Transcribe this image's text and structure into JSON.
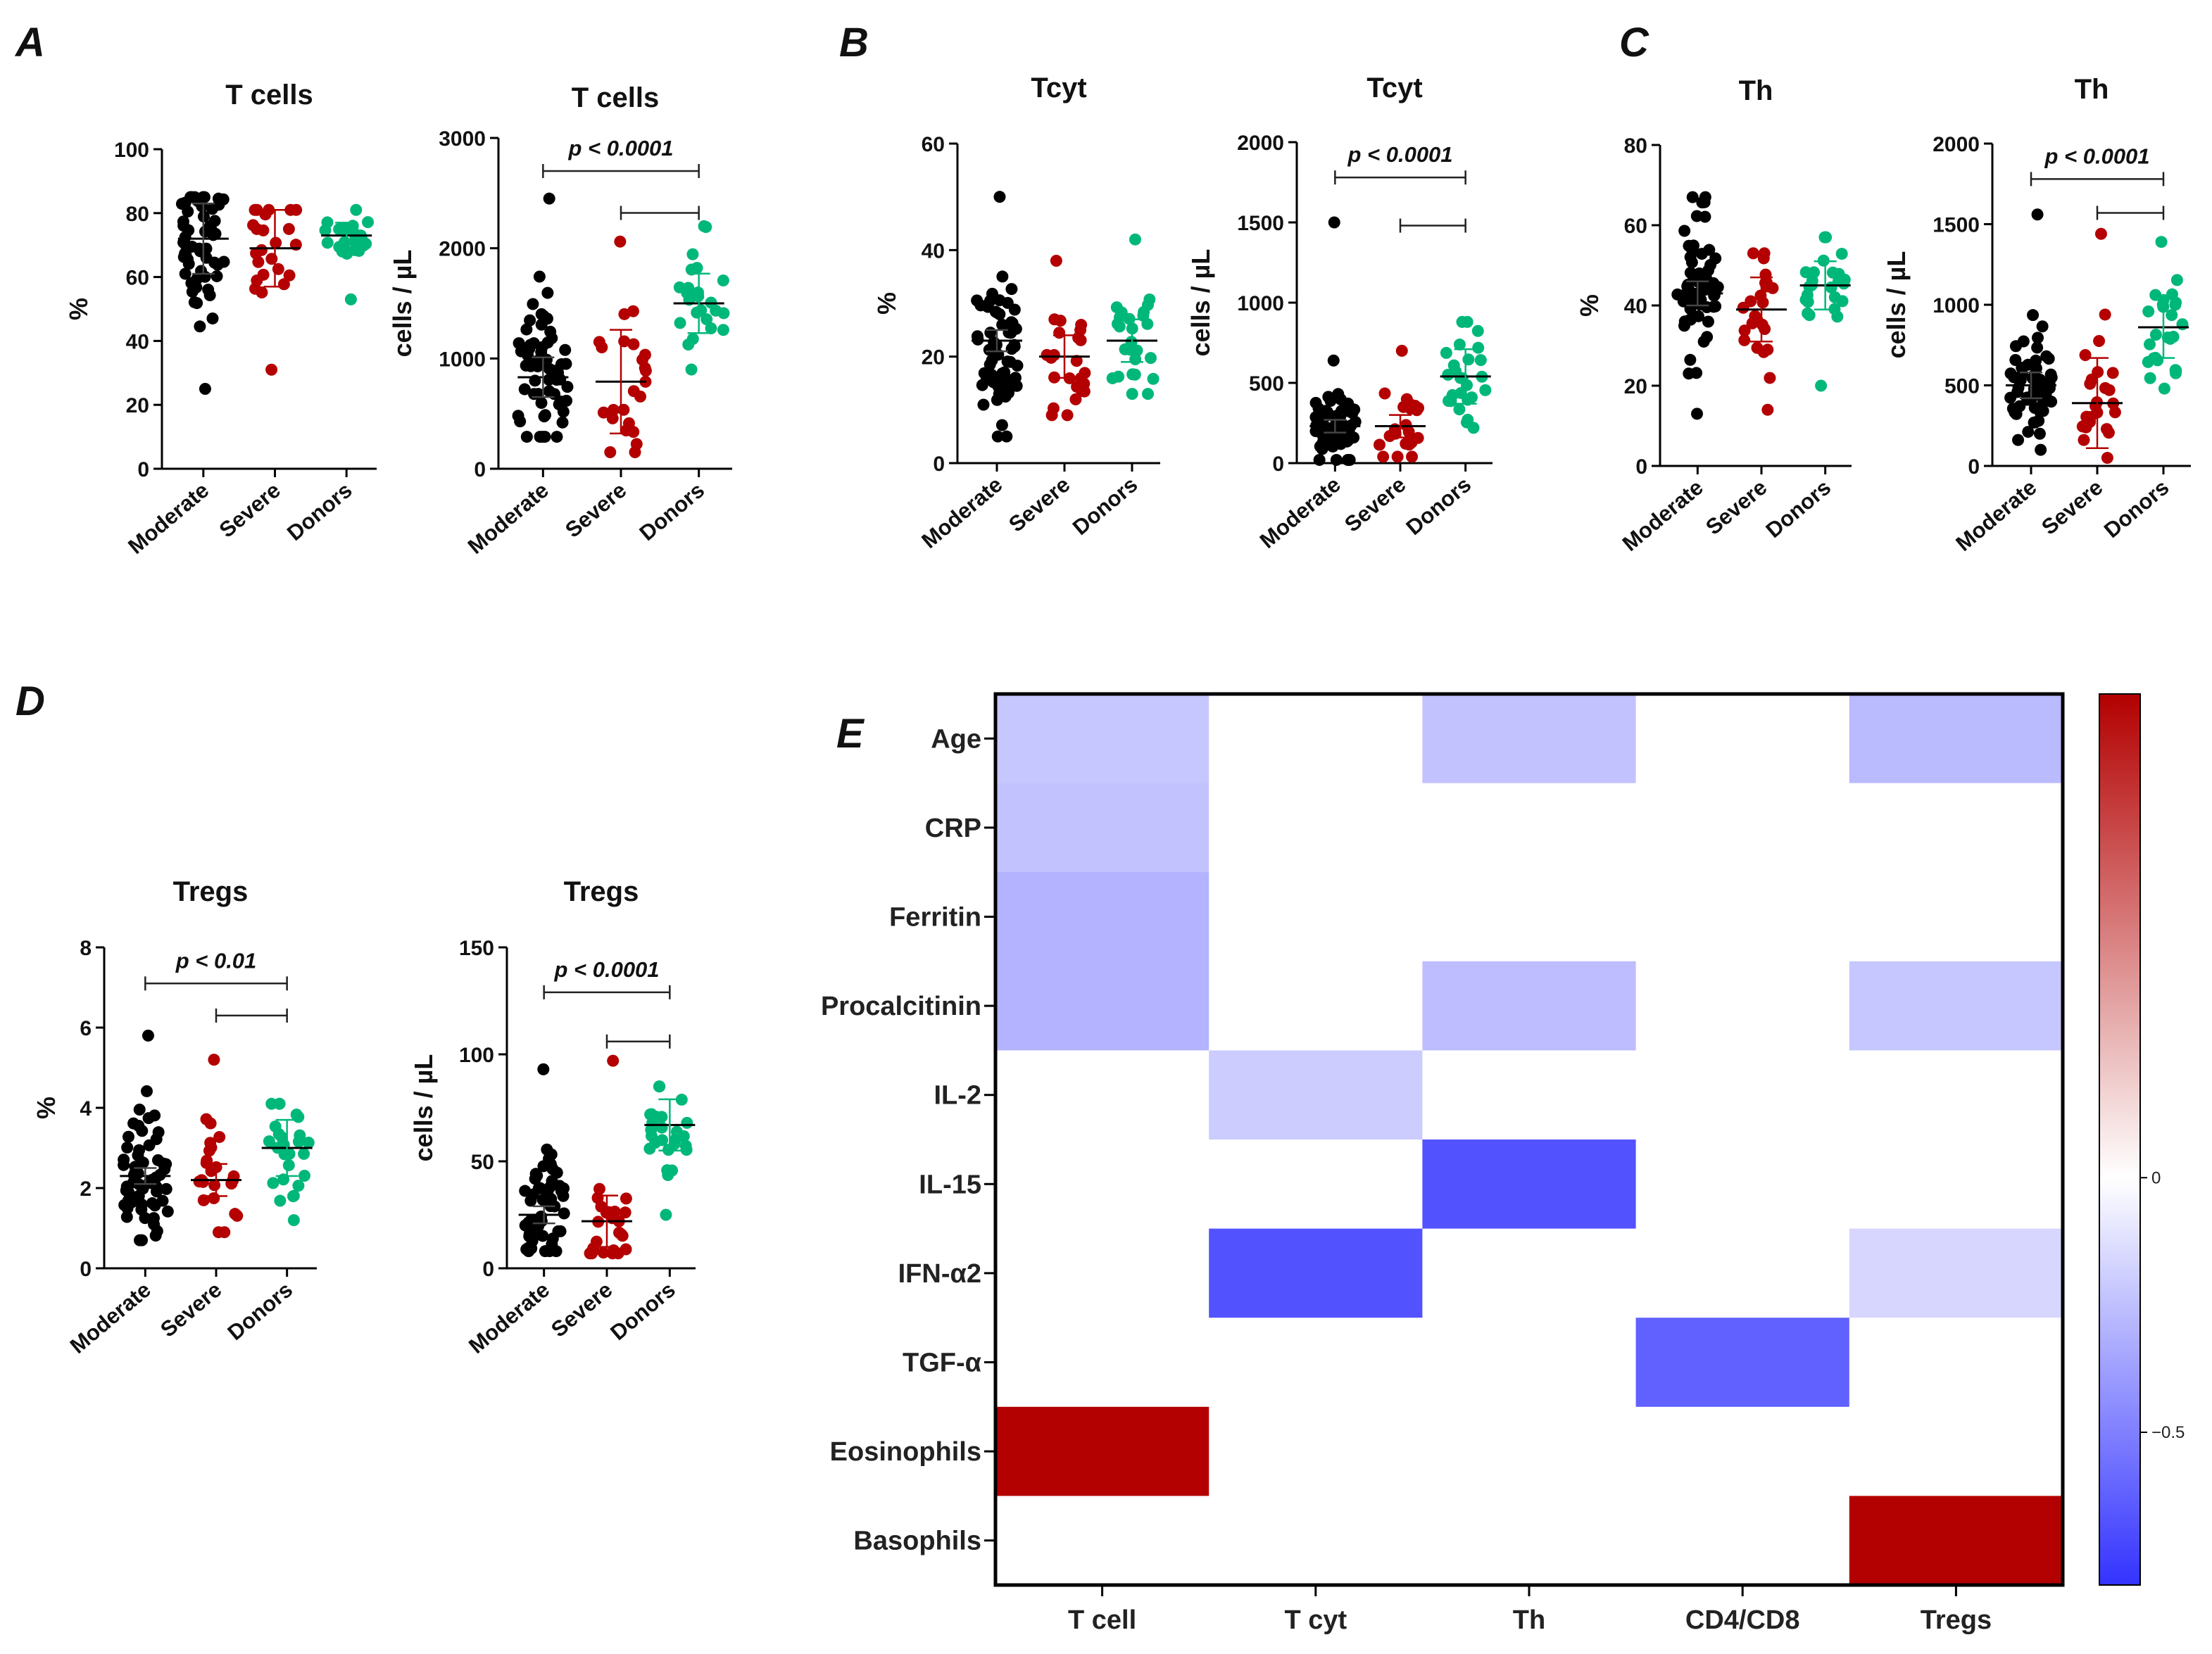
{
  "colors": {
    "Moderate": "#000000",
    "Severe": "#b40000",
    "Donors": "#00b77a",
    "axis": "#000000",
    "neg": "#3333ff",
    "pos": "#b30000"
  },
  "chart_data": [
    {
      "type": "scatter",
      "panel": "A",
      "title": "T cells",
      "ylabel": "%",
      "ylim": [
        0,
        100
      ],
      "yticks": [
        0,
        20,
        40,
        60,
        80,
        100
      ],
      "categories": [
        "Moderate",
        "Severe",
        "Donors"
      ],
      "groups": [
        {
          "name": "Moderate",
          "n": 60,
          "center": 72,
          "min": 25,
          "max": 85,
          "spread": 11,
          "mean": 72,
          "err": 11
        },
        {
          "name": "Severe",
          "n": 24,
          "center": 69,
          "min": 31,
          "max": 81,
          "spread": 11,
          "mean": 69,
          "err": 12
        },
        {
          "name": "Donors",
          "n": 26,
          "center": 73,
          "min": 53,
          "max": 81,
          "spread": 4,
          "mean": 73,
          "err": 4
        }
      ],
      "annotations": []
    },
    {
      "type": "scatter",
      "panel": "A2",
      "title": "T cells",
      "ylabel": "cells / µL",
      "ylim": [
        0,
        3000
      ],
      "yticks": [
        0,
        1000,
        2000,
        3000
      ],
      "categories": [
        "Moderate",
        "Severe",
        "Donors"
      ],
      "groups": [
        {
          "name": "Moderate",
          "n": 60,
          "center": 820,
          "min": 290,
          "max": 2450,
          "spread": 400,
          "mean": 830,
          "err": 180
        },
        {
          "name": "Severe",
          "n": 24,
          "center": 780,
          "min": 150,
          "max": 2060,
          "spread": 400,
          "mean": 790,
          "err": 470
        },
        {
          "name": "Donors",
          "n": 26,
          "center": 1490,
          "min": 900,
          "max": 2200,
          "spread": 270,
          "mean": 1500,
          "err": 270
        }
      ],
      "annotations": [
        {
          "text": "p < 0.0001",
          "from": 0,
          "to": 2,
          "y": 2700
        },
        {
          "text": "",
          "from": 1,
          "to": 2,
          "y": 2320
        }
      ]
    },
    {
      "type": "scatter",
      "panel": "B",
      "title": "Tcyt",
      "ylabel": "%",
      "ylim": [
        0,
        60
      ],
      "yticks": [
        0,
        20,
        40,
        60
      ],
      "categories": [
        "Moderate",
        "Severe",
        "Donors"
      ],
      "groups": [
        {
          "name": "Moderate",
          "n": 60,
          "center": 23,
          "min": 5,
          "max": 50,
          "spread": 8,
          "mean": 23,
          "err": 2
        },
        {
          "name": "Severe",
          "n": 24,
          "center": 20,
          "min": 9,
          "max": 38,
          "spread": 7,
          "mean": 20,
          "err": 4
        },
        {
          "name": "Donors",
          "n": 26,
          "center": 23,
          "min": 13,
          "max": 42,
          "spread": 7,
          "mean": 23,
          "err": 4
        }
      ],
      "annotations": []
    },
    {
      "type": "scatter",
      "panel": "B2",
      "title": "Tcyt",
      "ylabel": "cells / µL",
      "ylim": [
        0,
        2000
      ],
      "yticks": [
        0,
        500,
        1000,
        1500,
        2000
      ],
      "categories": [
        "Moderate",
        "Severe",
        "Donors"
      ],
      "groups": [
        {
          "name": "Moderate",
          "n": 60,
          "center": 230,
          "min": 20,
          "max": 1500,
          "spread": 140,
          "mean": 230,
          "err": 40
        },
        {
          "name": "Severe",
          "n": 24,
          "center": 230,
          "min": 40,
          "max": 700,
          "spread": 140,
          "mean": 230,
          "err": 70
        },
        {
          "name": "Donors",
          "n": 26,
          "center": 540,
          "min": 220,
          "max": 880,
          "spread": 160,
          "mean": 540,
          "err": 170
        }
      ],
      "annotations": [
        {
          "text": "p < 0.0001",
          "from": 0,
          "to": 2,
          "y": 1780
        },
        {
          "text": "",
          "from": 1,
          "to": 2,
          "y": 1480
        }
      ]
    },
    {
      "type": "scatter",
      "panel": "C",
      "title": "Th",
      "ylabel": "%",
      "ylim": [
        0,
        80
      ],
      "yticks": [
        0,
        20,
        40,
        60,
        80
      ],
      "categories": [
        "Moderate",
        "Severe",
        "Donors"
      ],
      "groups": [
        {
          "name": "Moderate",
          "n": 60,
          "center": 43,
          "min": 13,
          "max": 67,
          "spread": 9,
          "mean": 43,
          "err": 3
        },
        {
          "name": "Severe",
          "n": 24,
          "center": 39,
          "min": 14,
          "max": 53,
          "spread": 8,
          "mean": 39,
          "err": 8
        },
        {
          "name": "Donors",
          "n": 26,
          "center": 45,
          "min": 20,
          "max": 57,
          "spread": 6,
          "mean": 45,
          "err": 6
        }
      ],
      "annotations": []
    },
    {
      "type": "scatter",
      "panel": "C2",
      "title": "Th",
      "ylabel": "cells / µL",
      "ylim": [
        0,
        2000
      ],
      "yticks": [
        0,
        500,
        1000,
        1500,
        2000
      ],
      "categories": [
        "Moderate",
        "Severe",
        "Donors"
      ],
      "groups": [
        {
          "name": "Moderate",
          "n": 60,
          "center": 500,
          "min": 100,
          "max": 1560,
          "spread": 200,
          "mean": 500,
          "err": 80
        },
        {
          "name": "Severe",
          "n": 24,
          "center": 390,
          "min": 50,
          "max": 1440,
          "spread": 220,
          "mean": 390,
          "err": 280
        },
        {
          "name": "Donors",
          "n": 26,
          "center": 860,
          "min": 480,
          "max": 1390,
          "spread": 190,
          "mean": 860,
          "err": 190
        }
      ],
      "annotations": [
        {
          "text": "p < 0.0001",
          "from": 0,
          "to": 2,
          "y": 1780
        },
        {
          "text": "",
          "from": 1,
          "to": 2,
          "y": 1570
        }
      ]
    },
    {
      "type": "scatter",
      "panel": "D",
      "title": "Tregs",
      "ylabel": "%",
      "ylim": [
        0,
        8
      ],
      "yticks": [
        0,
        2,
        4,
        6,
        8
      ],
      "categories": [
        "Moderate",
        "Severe",
        "Donors"
      ],
      "groups": [
        {
          "name": "Moderate",
          "n": 60,
          "center": 2.3,
          "min": 0.7,
          "max": 5.8,
          "spread": 0.9,
          "mean": 2.3,
          "err": 0.2
        },
        {
          "name": "Severe",
          "n": 24,
          "center": 2.2,
          "min": 0.9,
          "max": 5.2,
          "spread": 0.9,
          "mean": 2.2,
          "err": 0.4
        },
        {
          "name": "Donors",
          "n": 26,
          "center": 3.0,
          "min": 1.2,
          "max": 4.1,
          "spread": 0.7,
          "mean": 3.0,
          "err": 0.7
        }
      ],
      "annotations": [
        {
          "text": "p < 0.01",
          "from": 0,
          "to": 2,
          "y": 7.1
        },
        {
          "text": "",
          "from": 1,
          "to": 2,
          "y": 6.3
        }
      ]
    },
    {
      "type": "scatter",
      "panel": "D2",
      "title": "Tregs",
      "ylabel": "cells / µL",
      "ylim": [
        0,
        150
      ],
      "yticks": [
        0,
        50,
        100,
        150
      ],
      "categories": [
        "Moderate",
        "Severe",
        "Donors"
      ],
      "groups": [
        {
          "name": "Moderate",
          "n": 60,
          "center": 25,
          "min": 8,
          "max": 93,
          "spread": 14,
          "mean": 25,
          "err": 4
        },
        {
          "name": "Severe",
          "n": 24,
          "center": 22,
          "min": 7,
          "max": 97,
          "spread": 12,
          "mean": 22,
          "err": 12
        },
        {
          "name": "Donors",
          "n": 26,
          "center": 67,
          "min": 25,
          "max": 85,
          "spread": 12,
          "mean": 67,
          "err": 12
        }
      ],
      "annotations": [
        {
          "text": "p < 0.0001",
          "from": 0,
          "to": 2,
          "y": 129
        },
        {
          "text": "",
          "from": 1,
          "to": 2,
          "y": 106
        }
      ]
    },
    {
      "type": "heatmap",
      "panel": "E",
      "rows": [
        "Age",
        "CRP",
        "Ferritin",
        "Procalcitinin",
        "IL-2",
        "IL-15",
        "IFN-α2",
        "TGF-α",
        "Eosinophils",
        "Basophils"
      ],
      "cols": [
        "T cell",
        "T cyt",
        "Th",
        "CD4/CD8",
        "Tregs"
      ],
      "values": [
        [
          -0.22,
          0,
          -0.24,
          0,
          -0.27
        ],
        [
          -0.24,
          0,
          0,
          0,
          0
        ],
        [
          -0.3,
          0,
          0,
          0,
          0
        ],
        [
          -0.3,
          0,
          -0.26,
          0,
          -0.22
        ],
        [
          0,
          -0.2,
          0,
          0,
          0
        ],
        [
          0,
          0,
          -0.68,
          0,
          0
        ],
        [
          0,
          -0.68,
          0,
          0,
          -0.16
        ],
        [
          0,
          0,
          0,
          -0.62,
          0
        ],
        [
          0.95,
          0,
          0,
          0,
          0
        ],
        [
          0,
          0,
          0,
          0,
          0.95
        ]
      ],
      "colorbar": {
        "range": [
          -0.8,
          0.95
        ],
        "ticks": [
          0,
          -0.5
        ],
        "tick_labels": [
          "0",
          "−0.5"
        ]
      }
    }
  ]
}
